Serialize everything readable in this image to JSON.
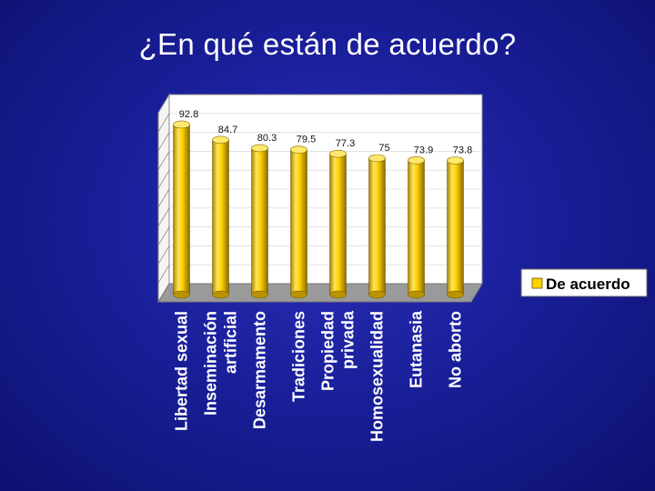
{
  "slide": {
    "title": "¿En qué están de acuerdo?"
  },
  "chart_data": {
    "type": "bar",
    "categories": [
      [
        "Libertad sexual"
      ],
      [
        "Inseminación",
        "artificial"
      ],
      [
        "Desarmamento"
      ],
      [
        "Tradiciones"
      ],
      [
        "Propiedad",
        "privada"
      ],
      [
        "Homosexualidad"
      ],
      [
        "Eutanasia"
      ],
      [
        "No aborto"
      ]
    ],
    "series": [
      {
        "name": "De acuerdo",
        "values": [
          92.8,
          84.7,
          80.3,
          79.5,
          77.3,
          75,
          73.9,
          73.8
        ],
        "color": "#ffd200"
      }
    ],
    "data_labels": [
      "92.8",
      "84.7",
      "80.3",
      "79.5",
      "77.3",
      "75",
      "73.9",
      "73.8"
    ],
    "ylim": [
      0,
      100
    ],
    "grid": true,
    "legend": {
      "position": "right",
      "entries": [
        "De acuerdo"
      ]
    },
    "colors": {
      "plot_wall": "#ffffff",
      "floor": "#9a9a9a",
      "gridline": "#8a8a8a"
    }
  }
}
